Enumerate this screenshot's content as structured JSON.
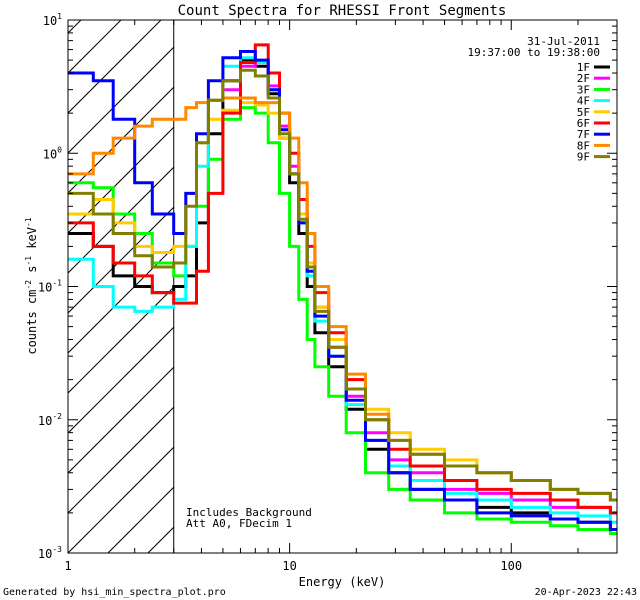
{
  "chart_data": {
    "type": "line",
    "title": "Count Spectra for RHESSI Front Segments",
    "xlabel": "Energy (keV)",
    "ylabel_parts": {
      "a": "counts cm",
      "b": "-2",
      "c": " s",
      "d": "-1",
      "e": " keV",
      "f": "-1"
    },
    "x_scale": "log",
    "y_scale": "log",
    "xlim": [
      1,
      300
    ],
    "ylim": [
      0.001,
      10
    ],
    "x_ticks": [
      {
        "value": 1,
        "label": "1"
      },
      {
        "value": 10,
        "label": "10"
      },
      {
        "value": 100,
        "label": "100"
      }
    ],
    "y_ticks": [
      {
        "value": 0.001,
        "base": "10",
        "exp": "-3"
      },
      {
        "value": 0.01,
        "base": "10",
        "exp": "-2"
      },
      {
        "value": 0.1,
        "base": "10",
        "exp": "-1"
      },
      {
        "value": 1,
        "base": "10",
        "exp": "0"
      },
      {
        "value": 10,
        "base": "10",
        "exp": "1"
      }
    ],
    "hatched_below_keV": 3,
    "date": "31-Jul-2011",
    "time_range": "19:37:00 to 19:38:00",
    "annotation_lines": [
      "Includes Background",
      "Att A0, FDecim 1"
    ],
    "legend_position": "top-right",
    "series": [
      {
        "name": "1F",
        "color": "#000000",
        "values": [
          [
            1,
            0.25
          ],
          [
            1.3,
            0.2
          ],
          [
            1.6,
            0.12
          ],
          [
            2,
            0.1
          ],
          [
            2.4,
            0.09
          ],
          [
            3,
            0.1
          ],
          [
            3.4,
            0.12
          ],
          [
            3.8,
            0.3
          ],
          [
            4.3,
            1.4
          ],
          [
            5,
            3.5
          ],
          [
            6,
            5
          ],
          [
            7,
            4.5
          ],
          [
            8,
            2.8
          ],
          [
            9,
            1.3
          ],
          [
            10,
            0.6
          ],
          [
            11,
            0.25
          ],
          [
            12,
            0.1
          ],
          [
            13,
            0.045
          ],
          [
            15,
            0.025
          ],
          [
            18,
            0.012
          ],
          [
            22,
            0.006
          ],
          [
            28,
            0.004
          ],
          [
            35,
            0.003
          ],
          [
            50,
            0.0025
          ],
          [
            70,
            0.0022
          ],
          [
            100,
            0.002
          ],
          [
            150,
            0.0018
          ],
          [
            200,
            0.0017
          ],
          [
            280,
            0.0015
          ]
        ]
      },
      {
        "name": "2F",
        "color": "#ff00ff",
        "values": [
          [
            5,
            3
          ],
          [
            6,
            4.5
          ],
          [
            7,
            4.8
          ],
          [
            8,
            3.2
          ],
          [
            9,
            1.6
          ],
          [
            10,
            0.8
          ],
          [
            11,
            0.35
          ],
          [
            12,
            0.15
          ],
          [
            13,
            0.07
          ],
          [
            15,
            0.035
          ],
          [
            18,
            0.015
          ],
          [
            22,
            0.008
          ],
          [
            28,
            0.005
          ],
          [
            35,
            0.004
          ],
          [
            50,
            0.003
          ],
          [
            70,
            0.0028
          ],
          [
            100,
            0.0025
          ],
          [
            150,
            0.0022
          ],
          [
            200,
            0.0022
          ],
          [
            280,
            0.002
          ]
        ]
      },
      {
        "name": "3F",
        "color": "#00ff00",
        "values": [
          [
            1,
            0.6
          ],
          [
            1.3,
            0.55
          ],
          [
            1.6,
            0.35
          ],
          [
            2,
            0.25
          ],
          [
            2.4,
            0.15
          ],
          [
            3,
            0.12
          ],
          [
            3.4,
            0.2
          ],
          [
            3.8,
            0.4
          ],
          [
            4.3,
            0.9
          ],
          [
            5,
            1.8
          ],
          [
            6,
            2.2
          ],
          [
            7,
            2
          ],
          [
            8,
            1.2
          ],
          [
            9,
            0.5
          ],
          [
            10,
            0.2
          ],
          [
            11,
            0.08
          ],
          [
            12,
            0.04
          ],
          [
            13,
            0.025
          ],
          [
            15,
            0.015
          ],
          [
            18,
            0.008
          ],
          [
            22,
            0.004
          ],
          [
            28,
            0.003
          ],
          [
            35,
            0.0025
          ],
          [
            50,
            0.002
          ],
          [
            70,
            0.0018
          ],
          [
            100,
            0.0017
          ],
          [
            150,
            0.0016
          ],
          [
            200,
            0.0015
          ],
          [
            280,
            0.0014
          ]
        ]
      },
      {
        "name": "4F",
        "color": "#00ffff",
        "values": [
          [
            1,
            0.16
          ],
          [
            1.3,
            0.1
          ],
          [
            1.6,
            0.07
          ],
          [
            2,
            0.065
          ],
          [
            2.4,
            0.07
          ],
          [
            3,
            0.08
          ],
          [
            3.4,
            0.2
          ],
          [
            3.8,
            0.8
          ],
          [
            4.3,
            2.5
          ],
          [
            5,
            4.5
          ],
          [
            6,
            5.2
          ],
          [
            7,
            4.8
          ],
          [
            8,
            3
          ],
          [
            9,
            1.5
          ],
          [
            10,
            0.7
          ],
          [
            11,
            0.3
          ],
          [
            12,
            0.12
          ],
          [
            13,
            0.055
          ],
          [
            15,
            0.03
          ],
          [
            18,
            0.013
          ],
          [
            22,
            0.007
          ],
          [
            28,
            0.0045
          ],
          [
            35,
            0.0035
          ],
          [
            50,
            0.0028
          ],
          [
            70,
            0.0025
          ],
          [
            100,
            0.0022
          ],
          [
            150,
            0.002
          ],
          [
            200,
            0.0019
          ],
          [
            280,
            0.0017
          ]
        ]
      },
      {
        "name": "5F",
        "color": "#ffcc00",
        "values": [
          [
            1,
            0.35
          ],
          [
            1.3,
            0.45
          ],
          [
            1.6,
            0.3
          ],
          [
            2,
            0.2
          ],
          [
            2.4,
            0.18
          ],
          [
            3,
            0.2
          ],
          [
            3.4,
            0.5
          ],
          [
            3.8,
            1.2
          ],
          [
            4.3,
            1.8
          ],
          [
            5,
            2.1
          ],
          [
            6,
            2.4
          ],
          [
            7,
            2.3
          ],
          [
            8,
            2
          ],
          [
            9,
            1.3
          ],
          [
            10,
            0.7
          ],
          [
            11,
            0.35
          ],
          [
            12,
            0.15
          ],
          [
            13,
            0.07
          ],
          [
            15,
            0.04
          ],
          [
            18,
            0.02
          ],
          [
            22,
            0.012
          ],
          [
            28,
            0.008
          ],
          [
            35,
            0.006
          ],
          [
            50,
            0.005
          ],
          [
            70,
            0.004
          ],
          [
            100,
            0.0035
          ],
          [
            150,
            0.003
          ],
          [
            200,
            0.0028
          ],
          [
            280,
            0.0025
          ]
        ]
      },
      {
        "name": "6F",
        "color": "#ff0000",
        "values": [
          [
            1,
            0.3
          ],
          [
            1.3,
            0.2
          ],
          [
            1.6,
            0.15
          ],
          [
            2,
            0.12
          ],
          [
            2.4,
            0.09
          ],
          [
            3,
            0.075
          ],
          [
            3.4,
            0.075
          ],
          [
            3.8,
            0.13
          ],
          [
            4.3,
            0.5
          ],
          [
            5,
            2
          ],
          [
            6,
            4.8
          ],
          [
            7,
            6.5
          ],
          [
            8,
            4
          ],
          [
            9,
            2
          ],
          [
            10,
            1
          ],
          [
            11,
            0.45
          ],
          [
            12,
            0.2
          ],
          [
            13,
            0.09
          ],
          [
            15,
            0.045
          ],
          [
            18,
            0.02
          ],
          [
            22,
            0.01
          ],
          [
            28,
            0.006
          ],
          [
            35,
            0.0045
          ],
          [
            50,
            0.0035
          ],
          [
            70,
            0.003
          ],
          [
            100,
            0.0028
          ],
          [
            150,
            0.0025
          ],
          [
            200,
            0.0022
          ],
          [
            280,
            0.002
          ]
        ]
      },
      {
        "name": "7F",
        "color": "#0000ff",
        "values": [
          [
            1,
            4
          ],
          [
            1.3,
            3.5
          ],
          [
            1.6,
            1.8
          ],
          [
            2,
            0.6
          ],
          [
            2.4,
            0.35
          ],
          [
            3,
            0.25
          ],
          [
            3.4,
            0.5
          ],
          [
            3.8,
            1.4
          ],
          [
            4.3,
            3.5
          ],
          [
            5,
            5.2
          ],
          [
            6,
            5.8
          ],
          [
            7,
            5
          ],
          [
            8,
            3
          ],
          [
            9,
            1.5
          ],
          [
            10,
            0.7
          ],
          [
            11,
            0.3
          ],
          [
            12,
            0.13
          ],
          [
            13,
            0.06
          ],
          [
            15,
            0.03
          ],
          [
            18,
            0.014
          ],
          [
            22,
            0.007
          ],
          [
            28,
            0.004
          ],
          [
            35,
            0.003
          ],
          [
            50,
            0.0025
          ],
          [
            70,
            0.002
          ],
          [
            100,
            0.0019
          ],
          [
            150,
            0.0018
          ],
          [
            200,
            0.0017
          ],
          [
            280,
            0.0015
          ]
        ]
      },
      {
        "name": "8F",
        "color": "#ff8800",
        "values": [
          [
            1,
            0.7
          ],
          [
            1.3,
            1
          ],
          [
            1.6,
            1.3
          ],
          [
            2,
            1.6
          ],
          [
            2.4,
            1.8
          ],
          [
            3,
            1.8
          ],
          [
            3.4,
            2.2
          ],
          [
            3.8,
            2.4
          ],
          [
            4.3,
            2.5
          ],
          [
            5,
            2.6
          ],
          [
            6,
            2.6
          ],
          [
            7,
            2.4
          ],
          [
            8,
            2.4
          ],
          [
            9,
            2
          ],
          [
            10,
            1.3
          ],
          [
            11,
            0.6
          ],
          [
            12,
            0.25
          ],
          [
            13,
            0.1
          ],
          [
            15,
            0.05
          ],
          [
            18,
            0.022
          ],
          [
            22,
            0.011
          ],
          [
            28,
            0.007
          ],
          [
            35,
            0.0055
          ],
          [
            50,
            0.0045
          ],
          [
            70,
            0.004
          ],
          [
            100,
            0.0035
          ],
          [
            150,
            0.003
          ],
          [
            200,
            0.0028
          ],
          [
            280,
            0.0025
          ]
        ]
      },
      {
        "name": "9F",
        "color": "#808000",
        "values": [
          [
            1,
            0.5
          ],
          [
            1.3,
            0.35
          ],
          [
            1.6,
            0.25
          ],
          [
            2,
            0.17
          ],
          [
            2.4,
            0.14
          ],
          [
            3,
            0.15
          ],
          [
            3.4,
            0.4
          ],
          [
            3.8,
            1.2
          ],
          [
            4.3,
            2.5
          ],
          [
            5,
            3.5
          ],
          [
            6,
            4.2
          ],
          [
            7,
            3.8
          ],
          [
            8,
            2.6
          ],
          [
            9,
            1.4
          ],
          [
            10,
            0.7
          ],
          [
            11,
            0.32
          ],
          [
            12,
            0.14
          ],
          [
            13,
            0.065
          ],
          [
            15,
            0.035
          ],
          [
            18,
            0.017
          ],
          [
            22,
            0.01
          ],
          [
            28,
            0.007
          ],
          [
            35,
            0.0055
          ],
          [
            50,
            0.0045
          ],
          [
            70,
            0.004
          ],
          [
            100,
            0.0035
          ],
          [
            150,
            0.003
          ],
          [
            200,
            0.0028
          ],
          [
            280,
            0.0025
          ]
        ]
      }
    ]
  },
  "footer": {
    "left": "Generated by hsi_min_spectra_plot.pro",
    "right": "20-Apr-2023 22:43"
  }
}
